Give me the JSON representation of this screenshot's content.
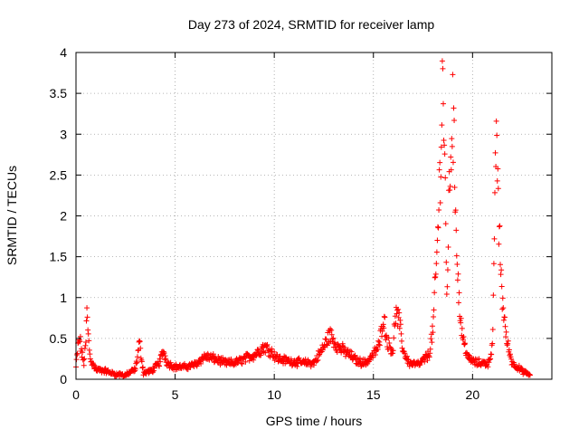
{
  "chart_data": {
    "type": "scatter",
    "title": "Day 273 of 2024, SRMTID for receiver lamp",
    "xlabel": "GPS time / hours",
    "ylabel": "SRMTID / TECUs",
    "xlim": [
      0,
      24
    ],
    "ylim": [
      0,
      4
    ],
    "xticks": [
      0,
      5,
      10,
      15,
      20
    ],
    "yticks": [
      0,
      0.5,
      1,
      1.5,
      2,
      2.5,
      3,
      3.5,
      4
    ],
    "xtick_labels": [
      "0",
      "5",
      "10",
      "15",
      "20"
    ],
    "ytick_labels": [
      "0",
      "0.5",
      "1",
      "1.5",
      "2",
      "2.5",
      "3",
      "3.5",
      "4"
    ],
    "grid": true,
    "marker": "plus",
    "series": [
      {
        "name": "SRMTID",
        "color": "#ff0000",
        "profile": [
          [
            0.0,
            0.15
          ],
          [
            0.1,
            0.4
          ],
          [
            0.2,
            0.5
          ],
          [
            0.3,
            0.3
          ],
          [
            0.4,
            0.2
          ],
          [
            0.5,
            0.45
          ],
          [
            0.55,
            0.85
          ],
          [
            0.6,
            0.6
          ],
          [
            0.7,
            0.3
          ],
          [
            0.8,
            0.2
          ],
          [
            1.0,
            0.12
          ],
          [
            1.5,
            0.1
          ],
          [
            2.0,
            0.06
          ],
          [
            2.5,
            0.05
          ],
          [
            3.0,
            0.12
          ],
          [
            3.2,
            0.45
          ],
          [
            3.4,
            0.08
          ],
          [
            3.8,
            0.1
          ],
          [
            4.2,
            0.2
          ],
          [
            4.4,
            0.35
          ],
          [
            4.6,
            0.2
          ],
          [
            5.0,
            0.15
          ],
          [
            5.5,
            0.15
          ],
          [
            6.0,
            0.18
          ],
          [
            6.5,
            0.28
          ],
          [
            7.0,
            0.25
          ],
          [
            7.5,
            0.2
          ],
          [
            8.0,
            0.2
          ],
          [
            8.5,
            0.25
          ],
          [
            9.0,
            0.3
          ],
          [
            9.5,
            0.4
          ],
          [
            9.8,
            0.35
          ],
          [
            10.2,
            0.25
          ],
          [
            10.8,
            0.22
          ],
          [
            11.5,
            0.2
          ],
          [
            12.0,
            0.2
          ],
          [
            12.5,
            0.4
          ],
          [
            12.8,
            0.55
          ],
          [
            13.2,
            0.4
          ],
          [
            13.8,
            0.3
          ],
          [
            14.2,
            0.22
          ],
          [
            14.6,
            0.2
          ],
          [
            15.0,
            0.3
          ],
          [
            15.3,
            0.42
          ],
          [
            15.5,
            0.78
          ],
          [
            15.7,
            0.45
          ],
          [
            16.0,
            0.35
          ],
          [
            16.1,
            0.82
          ],
          [
            16.3,
            0.7
          ],
          [
            16.5,
            0.35
          ],
          [
            16.8,
            0.2
          ],
          [
            17.3,
            0.18
          ],
          [
            17.8,
            0.3
          ],
          [
            18.0,
            0.6
          ],
          [
            18.2,
            1.5
          ],
          [
            18.4,
            2.8
          ],
          [
            18.5,
            3.85
          ],
          [
            18.6,
            2.5
          ],
          [
            18.7,
            1.0
          ],
          [
            18.8,
            2.0
          ],
          [
            18.9,
            2.8
          ],
          [
            19.0,
            3.3
          ],
          [
            19.1,
            2.5
          ],
          [
            19.3,
            1.0
          ],
          [
            19.5,
            0.5
          ],
          [
            19.8,
            0.25
          ],
          [
            20.2,
            0.2
          ],
          [
            20.8,
            0.2
          ],
          [
            21.0,
            0.4
          ],
          [
            21.1,
            1.5
          ],
          [
            21.2,
            3.3
          ],
          [
            21.3,
            2.0
          ],
          [
            21.5,
            1.0
          ],
          [
            21.7,
            0.5
          ],
          [
            22.0,
            0.2
          ],
          [
            22.5,
            0.1
          ],
          [
            22.9,
            0.05
          ]
        ]
      }
    ]
  }
}
